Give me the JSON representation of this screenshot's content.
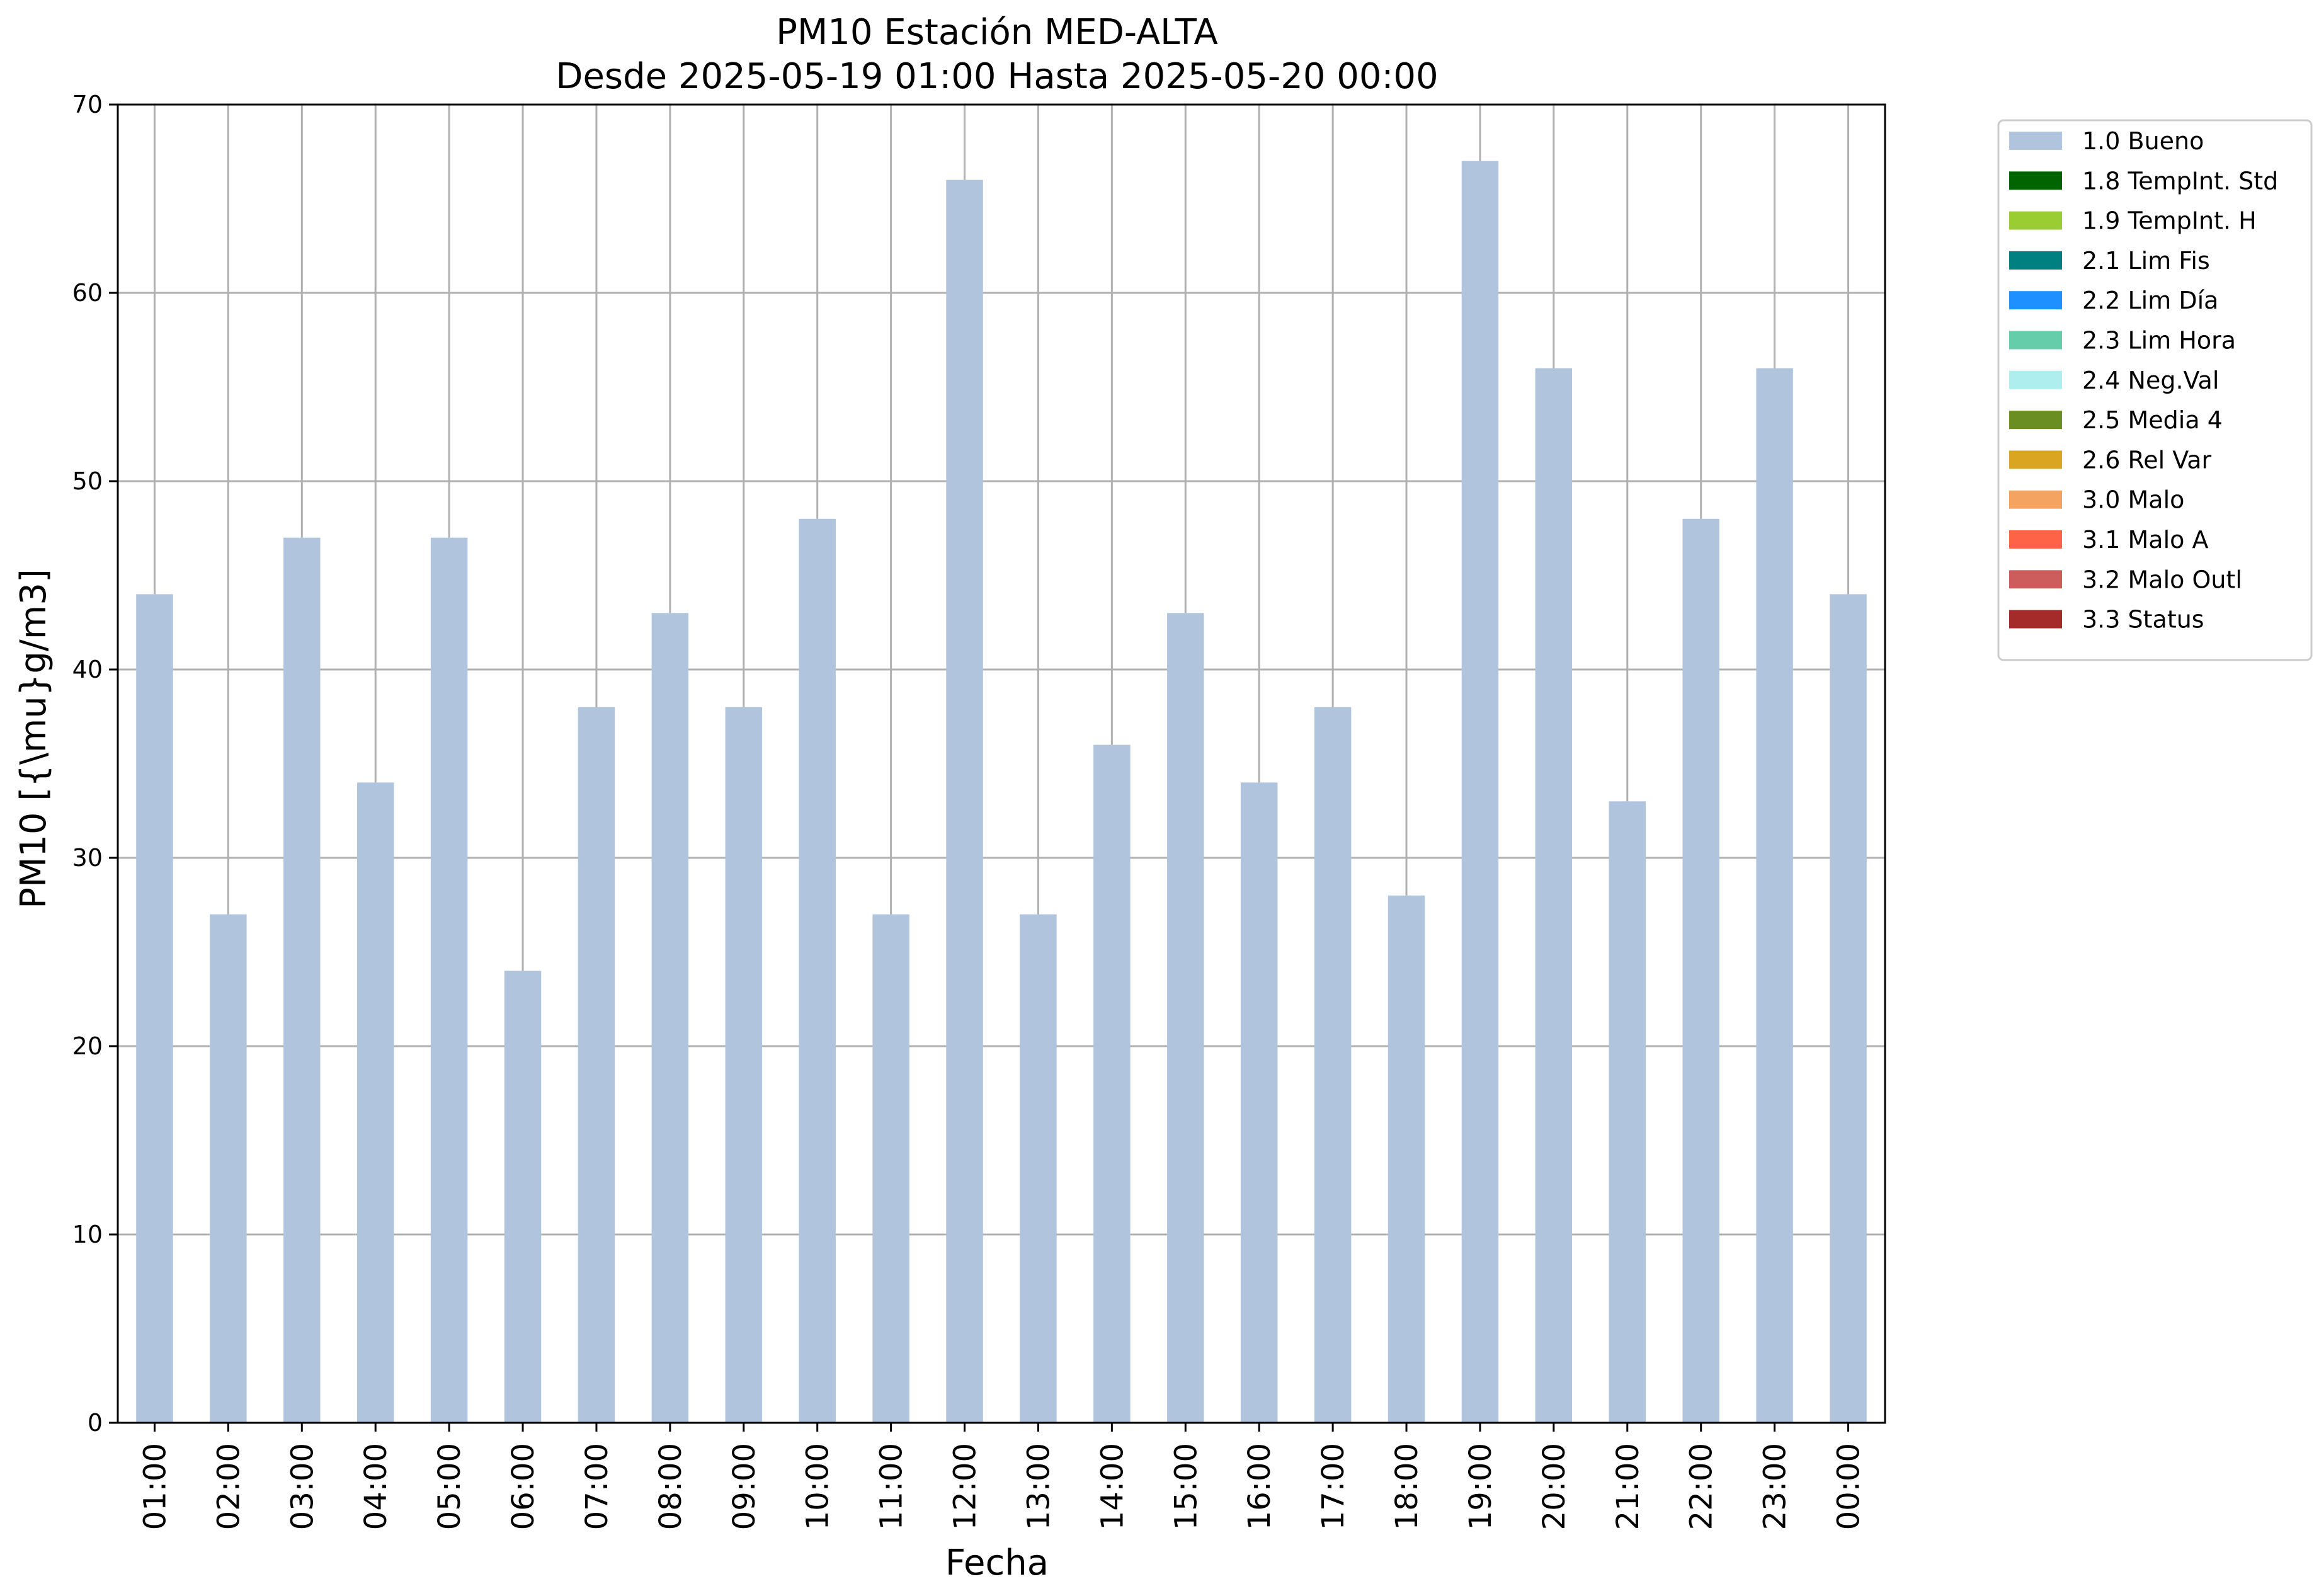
{
  "chart_data": {
    "type": "bar",
    "title": "PM10 Estación MED-ALTA",
    "subtitle": "Desde 2025-05-19 01:00 Hasta 2025-05-20 00:00",
    "xlabel": "Fecha",
    "ylabel": "PM10 [{\\mu}g/m3]",
    "categories": [
      "01:00",
      "02:00",
      "03:00",
      "04:00",
      "05:00",
      "06:00",
      "07:00",
      "08:00",
      "09:00",
      "10:00",
      "11:00",
      "12:00",
      "13:00",
      "14:00",
      "15:00",
      "16:00",
      "17:00",
      "18:00",
      "19:00",
      "20:00",
      "21:00",
      "22:00",
      "23:00",
      "00:00"
    ],
    "series": [
      {
        "name": "1.0 Bueno",
        "color": "#b0c4de",
        "values": [
          44,
          27,
          47,
          34,
          47,
          24,
          38,
          43,
          38,
          48,
          27,
          66,
          27,
          36,
          43,
          34,
          38,
          28,
          67,
          56,
          33,
          48,
          56,
          44
        ]
      }
    ],
    "ylim": [
      0,
      70
    ],
    "yticks": [
      "0",
      "10",
      "20",
      "30",
      "40",
      "50",
      "60",
      "70"
    ],
    "grid": true,
    "legend_position": "outside-right",
    "legend": [
      {
        "label": "1.0 Bueno",
        "color": "#b0c4de"
      },
      {
        "label": "1.8 TempInt. Std",
        "color": "#006400"
      },
      {
        "label": "1.9 TempInt. H",
        "color": "#9acd32"
      },
      {
        "label": "2.1 Lim Fis",
        "color": "#008080"
      },
      {
        "label": "2.2 Lim Día",
        "color": "#1e90ff"
      },
      {
        "label": "2.3 Lim Hora",
        "color": "#66cdaa"
      },
      {
        "label": "2.4 Neg.Val",
        "color": "#afeeee"
      },
      {
        "label": "2.5 Media 4",
        "color": "#6b8e23"
      },
      {
        "label": "2.6 Rel Var",
        "color": "#daa520"
      },
      {
        "label": "3.0 Malo",
        "color": "#f4a460"
      },
      {
        "label": "3.1 Malo A",
        "color": "#ff6347"
      },
      {
        "label": "3.2 Malo Outl",
        "color": "#cd5c5c"
      },
      {
        "label": "3.3 Status",
        "color": "#a52a2a"
      }
    ]
  }
}
